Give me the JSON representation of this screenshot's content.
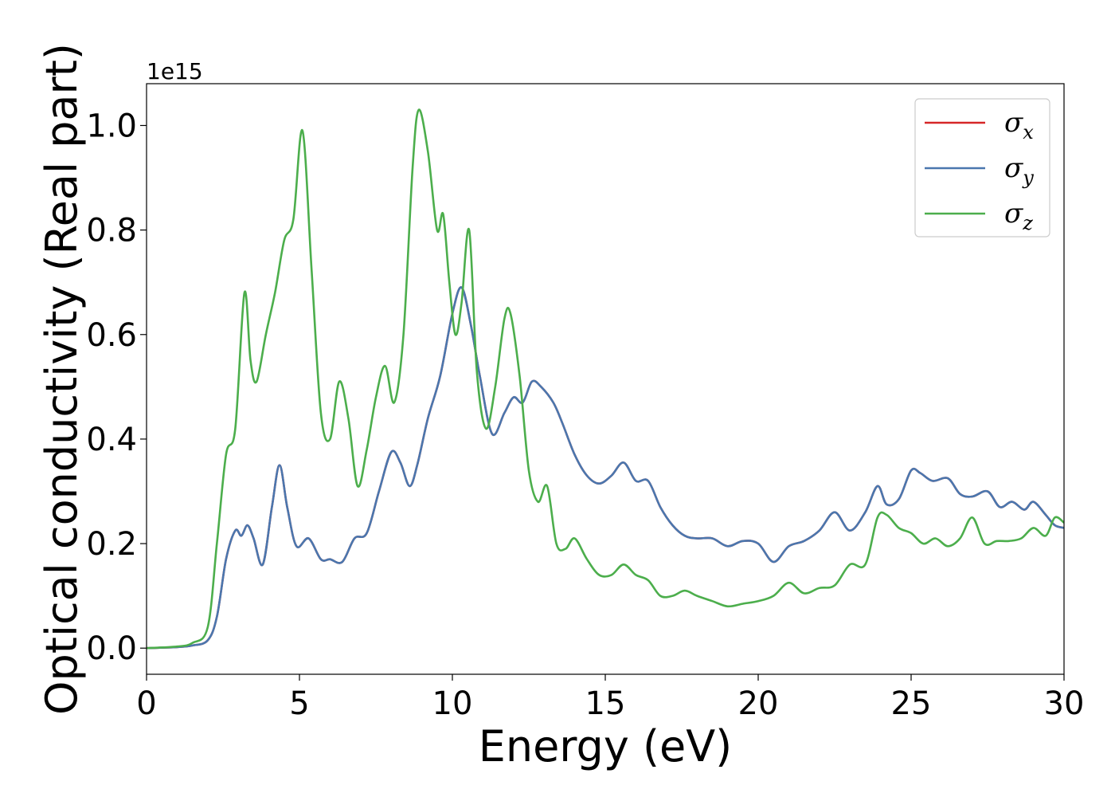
{
  "chart_data": {
    "type": "line",
    "title": "",
    "xlabel": "Energy (eV)",
    "ylabel": "Optical conductivity (Real part)",
    "y_offset_label": "1e15",
    "xlim": [
      0,
      30
    ],
    "ylim": [
      -0.05,
      1.08
    ],
    "x_ticks": [
      0,
      5,
      10,
      15,
      20,
      25,
      30
    ],
    "y_ticks": [
      0.0,
      0.2,
      0.4,
      0.6,
      0.8,
      1.0
    ],
    "x_tick_labels": [
      "0",
      "5",
      "10",
      "15",
      "20",
      "25",
      "30"
    ],
    "y_tick_labels": [
      "0.0",
      "0.2",
      "0.4",
      "0.6",
      "0.8",
      "1.0"
    ],
    "grid": false,
    "legend_position": "top-right",
    "series": [
      {
        "name": "σx",
        "label_base": "σ",
        "label_sub": "x",
        "color": "#d62728",
        "x": [
          0,
          1,
          1.5,
          2.0,
          2.3,
          2.6,
          2.9,
          3.1,
          3.3,
          3.5,
          3.8,
          4.1,
          4.35,
          4.6,
          4.9,
          5.3,
          5.7,
          6.0,
          6.4,
          6.8,
          7.2,
          7.6,
          8.0,
          8.3,
          8.6,
          8.85,
          9.2,
          9.6,
          10.0,
          10.3,
          10.6,
          10.9,
          11.3,
          11.7,
          12.0,
          12.3,
          12.6,
          12.9,
          13.3,
          13.6,
          14.0,
          14.4,
          14.8,
          15.2,
          15.6,
          16.0,
          16.4,
          16.8,
          17.2,
          17.6,
          18.0,
          18.5,
          19.0,
          19.5,
          20.0,
          20.5,
          21.0,
          21.5,
          22.0,
          22.5,
          23.0,
          23.5,
          23.9,
          24.2,
          24.6,
          25.0,
          25.3,
          25.7,
          26.2,
          26.6,
          27.0,
          27.5,
          27.9,
          28.3,
          28.7,
          29.0,
          29.4,
          29.7,
          30.0
        ],
        "y": [
          0.0,
          0.002,
          0.005,
          0.015,
          0.06,
          0.17,
          0.225,
          0.215,
          0.235,
          0.21,
          0.16,
          0.27,
          0.35,
          0.27,
          0.195,
          0.21,
          0.17,
          0.17,
          0.165,
          0.21,
          0.22,
          0.3,
          0.375,
          0.355,
          0.31,
          0.35,
          0.44,
          0.52,
          0.64,
          0.69,
          0.62,
          0.52,
          0.41,
          0.45,
          0.48,
          0.47,
          0.51,
          0.5,
          0.47,
          0.43,
          0.37,
          0.33,
          0.315,
          0.33,
          0.355,
          0.32,
          0.32,
          0.27,
          0.235,
          0.215,
          0.21,
          0.21,
          0.195,
          0.205,
          0.2,
          0.165,
          0.195,
          0.205,
          0.225,
          0.26,
          0.225,
          0.26,
          0.31,
          0.275,
          0.285,
          0.34,
          0.335,
          0.32,
          0.325,
          0.295,
          0.29,
          0.3,
          0.27,
          0.28,
          0.265,
          0.28,
          0.255,
          0.235,
          0.23
        ]
      },
      {
        "name": "σy",
        "label_base": "σ",
        "label_sub": "y",
        "color": "#4a77ae",
        "x": [
          0,
          1,
          1.5,
          2.0,
          2.3,
          2.6,
          2.9,
          3.1,
          3.3,
          3.5,
          3.8,
          4.1,
          4.35,
          4.6,
          4.9,
          5.3,
          5.7,
          6.0,
          6.4,
          6.8,
          7.2,
          7.6,
          8.0,
          8.3,
          8.6,
          8.85,
          9.2,
          9.6,
          10.0,
          10.3,
          10.6,
          10.9,
          11.3,
          11.7,
          12.0,
          12.3,
          12.6,
          12.9,
          13.3,
          13.6,
          14.0,
          14.4,
          14.8,
          15.2,
          15.6,
          16.0,
          16.4,
          16.8,
          17.2,
          17.6,
          18.0,
          18.5,
          19.0,
          19.5,
          20.0,
          20.5,
          21.0,
          21.5,
          22.0,
          22.5,
          23.0,
          23.5,
          23.9,
          24.2,
          24.6,
          25.0,
          25.3,
          25.7,
          26.2,
          26.6,
          27.0,
          27.5,
          27.9,
          28.3,
          28.7,
          29.0,
          29.4,
          29.7,
          30.0
        ],
        "y": [
          0.0,
          0.002,
          0.005,
          0.015,
          0.06,
          0.17,
          0.225,
          0.215,
          0.235,
          0.21,
          0.16,
          0.27,
          0.35,
          0.27,
          0.195,
          0.21,
          0.17,
          0.17,
          0.165,
          0.21,
          0.22,
          0.3,
          0.375,
          0.355,
          0.31,
          0.35,
          0.44,
          0.52,
          0.64,
          0.69,
          0.62,
          0.52,
          0.41,
          0.45,
          0.48,
          0.47,
          0.51,
          0.5,
          0.47,
          0.43,
          0.37,
          0.33,
          0.315,
          0.33,
          0.355,
          0.32,
          0.32,
          0.27,
          0.235,
          0.215,
          0.21,
          0.21,
          0.195,
          0.205,
          0.2,
          0.165,
          0.195,
          0.205,
          0.225,
          0.26,
          0.225,
          0.26,
          0.31,
          0.275,
          0.285,
          0.34,
          0.335,
          0.32,
          0.325,
          0.295,
          0.29,
          0.3,
          0.27,
          0.28,
          0.265,
          0.28,
          0.255,
          0.235,
          0.23
        ]
      },
      {
        "name": "σz",
        "label_base": "σ",
        "label_sub": "z",
        "color": "#4cae4c",
        "x": [
          0,
          1,
          1.5,
          2.0,
          2.3,
          2.6,
          2.9,
          3.2,
          3.4,
          3.6,
          3.9,
          4.2,
          4.5,
          4.8,
          5.1,
          5.4,
          5.7,
          6.0,
          6.3,
          6.6,
          6.9,
          7.2,
          7.5,
          7.8,
          8.1,
          8.4,
          8.7,
          8.9,
          9.2,
          9.5,
          9.7,
          9.9,
          10.1,
          10.3,
          10.55,
          10.8,
          11.1,
          11.4,
          11.7,
          11.9,
          12.2,
          12.5,
          12.8,
          13.1,
          13.4,
          13.7,
          14.0,
          14.4,
          14.8,
          15.2,
          15.6,
          16.0,
          16.4,
          16.8,
          17.2,
          17.6,
          18.0,
          18.5,
          19.0,
          19.5,
          20.0,
          20.5,
          21.0,
          21.5,
          22.0,
          22.5,
          23.0,
          23.5,
          23.9,
          24.2,
          24.6,
          25.0,
          25.4,
          25.8,
          26.2,
          26.6,
          27.0,
          27.4,
          27.8,
          28.2,
          28.6,
          29.0,
          29.4,
          29.7,
          30.0
        ],
        "y": [
          0.0,
          0.003,
          0.01,
          0.04,
          0.2,
          0.37,
          0.42,
          0.68,
          0.55,
          0.51,
          0.6,
          0.68,
          0.78,
          0.82,
          0.99,
          0.72,
          0.45,
          0.4,
          0.51,
          0.44,
          0.31,
          0.38,
          0.48,
          0.54,
          0.47,
          0.6,
          0.92,
          1.03,
          0.95,
          0.8,
          0.83,
          0.7,
          0.6,
          0.66,
          0.8,
          0.53,
          0.42,
          0.5,
          0.63,
          0.64,
          0.52,
          0.34,
          0.28,
          0.31,
          0.2,
          0.19,
          0.21,
          0.17,
          0.14,
          0.14,
          0.16,
          0.14,
          0.13,
          0.1,
          0.1,
          0.11,
          0.1,
          0.09,
          0.08,
          0.085,
          0.09,
          0.1,
          0.125,
          0.105,
          0.115,
          0.12,
          0.16,
          0.16,
          0.25,
          0.255,
          0.23,
          0.22,
          0.2,
          0.21,
          0.195,
          0.21,
          0.25,
          0.2,
          0.205,
          0.205,
          0.21,
          0.23,
          0.215,
          0.25,
          0.24
        ]
      }
    ]
  }
}
